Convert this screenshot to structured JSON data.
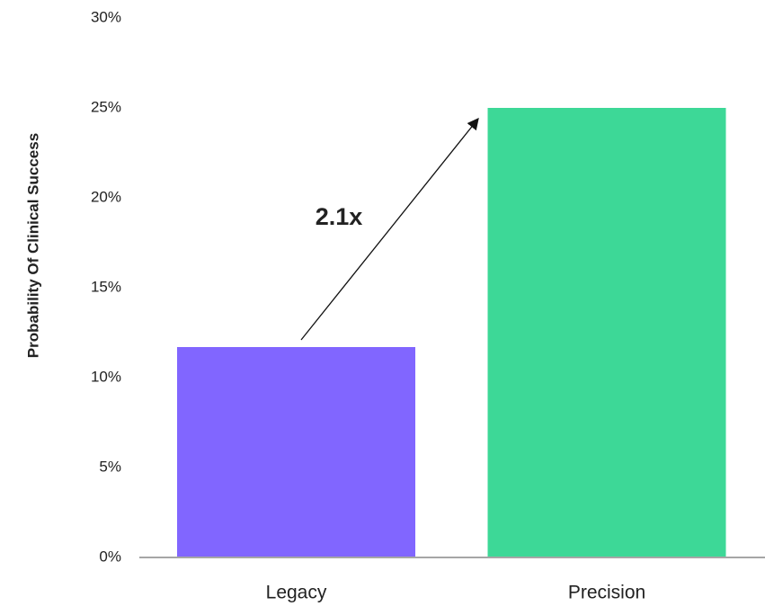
{
  "chart_data": {
    "type": "bar",
    "y_label": "Probability Of Clinical Success",
    "categories": [
      "Legacy",
      "Precision"
    ],
    "values": [
      11.7,
      25
    ],
    "colors": [
      "#8166ff",
      "#3dd897"
    ],
    "ylim": [
      0,
      30
    ],
    "yticks": [
      {
        "value": 0,
        "label": "0%"
      },
      {
        "value": 5,
        "label": "5%"
      },
      {
        "value": 10,
        "label": "10%"
      },
      {
        "value": 15,
        "label": "15%"
      },
      {
        "value": 20,
        "label": "20%"
      },
      {
        "value": 25,
        "label": "25%"
      },
      {
        "value": 30,
        "label": "30%"
      }
    ],
    "grid": false,
    "annotation": "2.1x"
  }
}
